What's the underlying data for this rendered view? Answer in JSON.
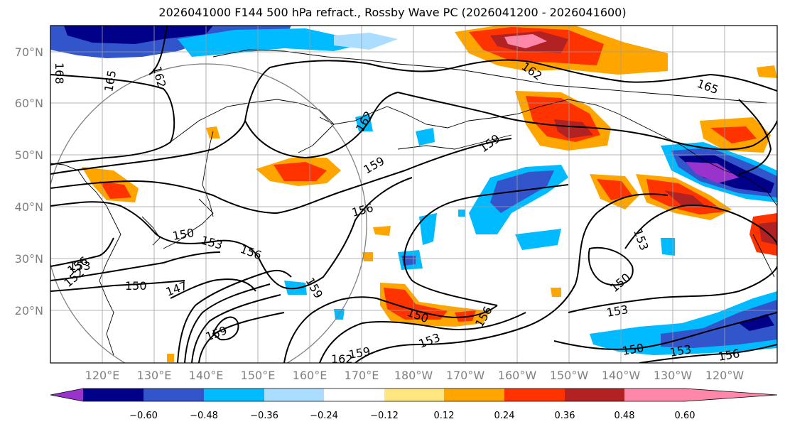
{
  "title": "2026041000 F144 500 hPa refract., Rossby Wave PC (2026041200 - 2026041600)",
  "lat_labels": [
    "70°N",
    "60°N",
    "50°N",
    "40°N",
    "30°N",
    "20°N"
  ],
  "lon_labels": [
    "120°E",
    "130°E",
    "140°E",
    "150°E",
    "160°E",
    "170°E",
    "180°W",
    "170°W",
    "160°W",
    "150°W",
    "140°W",
    "130°W",
    "120°W"
  ],
  "colorbar": {
    "ticks": [
      "−0.60",
      "−0.48",
      "−0.36",
      "−0.24",
      "−0.12",
      "0.12",
      "0.24",
      "0.36",
      "0.48",
      "0.60"
    ],
    "colors": [
      "#9933cc",
      "#000088",
      "#3355cc",
      "#00bbff",
      "#aaddff",
      "#ffffff",
      "#ffe680",
      "#ffa500",
      "#ff3300",
      "#b22222",
      "#ff88aa"
    ]
  },
  "contour_labels": [
    "168",
    "162",
    "165",
    "165",
    "162",
    "162",
    "159",
    "159",
    "156",
    "153",
    "156",
    "153",
    "156",
    "152",
    "150",
    "147",
    "159",
    "159",
    "153",
    "150",
    "150",
    "153",
    "150",
    "153",
    "156",
    "153",
    "162",
    "159",
    "156",
    "150"
  ]
}
